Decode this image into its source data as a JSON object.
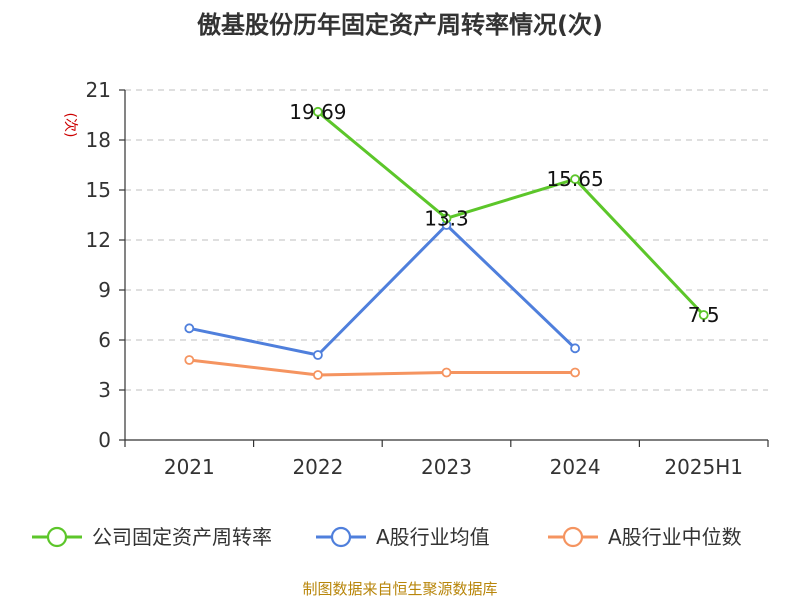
{
  "chart_data": {
    "type": "line",
    "title": "傲基股份历年固定资产周转率情况(次)",
    "ylabel": "(次)",
    "categories": [
      "2021",
      "2022",
      "2023",
      "2024",
      "2025H1"
    ],
    "ylim": [
      0,
      21
    ],
    "yticks": [
      0,
      3,
      6,
      9,
      12,
      15,
      18,
      21
    ],
    "grid": true,
    "legend_position": "bottom",
    "series": [
      {
        "name": "公司固定资产周转率",
        "color": "#5cc62a",
        "values": [
          null,
          19.69,
          13.3,
          15.65,
          7.5
        ],
        "labels": [
          null,
          "19.69",
          "13.3",
          "15.65",
          "7.5"
        ]
      },
      {
        "name": "A股行业均值",
        "color": "#4f7fdc",
        "values": [
          6.7,
          5.1,
          12.9,
          5.5,
          null
        ]
      },
      {
        "name": "A股行业中位数",
        "color": "#f59460",
        "values": [
          4.8,
          3.9,
          4.05,
          4.05,
          null
        ]
      }
    ]
  },
  "source": "制图数据来自恒生聚源数据库"
}
